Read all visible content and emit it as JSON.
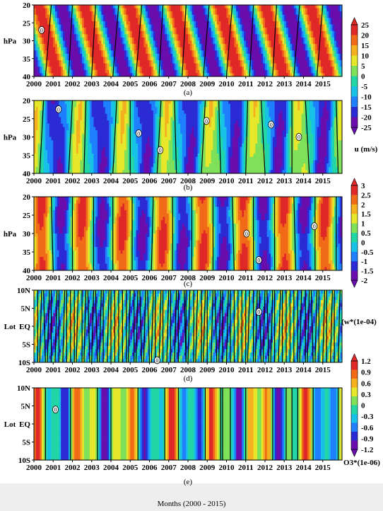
{
  "figure": {
    "xlabel": "Months (2000 - 2015)"
  },
  "chart_data": [
    {
      "type": "heatmap",
      "caption": "(a)",
      "ylabel": "hPa",
      "x_ticks": [
        "2000",
        "2001",
        "2002",
        "2003",
        "2004",
        "2005",
        "2006",
        "2007",
        "2008",
        "2009",
        "2010",
        "2011",
        "2012",
        "2013",
        "2014",
        "2015"
      ],
      "y_ticks": [
        "20",
        "25",
        "30",
        "35",
        "40"
      ],
      "contour_labels": [
        "0"
      ],
      "colorbar": {
        "label": "u (m/s)",
        "ticks": [
          "25",
          "20",
          "15",
          "10",
          "5",
          "0",
          "-5",
          "-10",
          "-15",
          "-20",
          "-25"
        ],
        "range": [
          -25,
          25
        ]
      },
      "pattern": "qbo",
      "colors": [
        "#6a0dad",
        "#2b2bd6",
        "#1e7fff",
        "#18c2e6",
        "#22d6a6",
        "#7fe05a",
        "#e6e62a",
        "#f5b020",
        "#f06a18",
        "#e02828"
      ]
    },
    {
      "type": "heatmap",
      "caption": "(b)",
      "ylabel": "hPa",
      "x_ticks": [
        "2000",
        "2001",
        "2002",
        "2003",
        "2004",
        "2005",
        "2006",
        "2007",
        "2008",
        "2009",
        "2010",
        "2011",
        "2012",
        "2013",
        "2014",
        "2015"
      ],
      "y_ticks": [
        "20",
        "25",
        "30",
        "35",
        "40"
      ],
      "contour_labels": [
        "0",
        "0",
        "0",
        "0",
        "0",
        "0"
      ],
      "pattern": "weak"
    },
    {
      "type": "heatmap",
      "caption": "(c)",
      "ylabel": "hPa",
      "x_ticks": [
        "2000",
        "2001",
        "2002",
        "2003",
        "2004",
        "2005",
        "2006",
        "2007",
        "2008",
        "2009",
        "2010",
        "2011",
        "2012",
        "2013",
        "2014",
        "2015"
      ],
      "y_ticks": [
        "20",
        "25",
        "30",
        "35",
        "40"
      ],
      "contour_labels": [
        "0",
        "0",
        "0"
      ],
      "colorbar": {
        "label": "(w*(1e-04)",
        "ticks": [
          "3",
          "2.5",
          "2",
          "1.5",
          "1",
          "0.5",
          "0",
          "-0.5",
          "-1",
          "-1.5",
          "-2"
        ],
        "range": [
          -2,
          3
        ]
      },
      "pattern": "vertical"
    },
    {
      "type": "heatmap",
      "caption": "(d)",
      "ylabel": "Lot",
      "x_ticks": [
        "2000",
        "2001",
        "2002",
        "2003",
        "2004",
        "2005",
        "2006",
        "2007",
        "2008",
        "2009",
        "2010",
        "2011",
        "2012",
        "2013",
        "2014",
        "2015"
      ],
      "y_ticks": [
        "10N",
        "5N",
        "EQ",
        "5S",
        "10S"
      ],
      "contour_labels": [
        "0",
        "0"
      ],
      "pattern": "noisy"
    },
    {
      "type": "heatmap",
      "caption": "(e)",
      "ylabel": "Lot",
      "x_ticks": [
        "2000",
        "2001",
        "2002",
        "2003",
        "2004",
        "2005",
        "2006",
        "2007",
        "2008",
        "2009",
        "2010",
        "2011",
        "2012",
        "2013",
        "2014",
        "2015"
      ],
      "y_ticks": [
        "10N",
        "5N",
        "EQ",
        "5S",
        "10S"
      ],
      "contour_labels": [
        "0"
      ],
      "colorbar": {
        "label": "O3*(1e-06)",
        "ticks": [
          "1.2",
          "0.9",
          "0.6",
          "0.3",
          "0",
          "-0.3",
          "-0.6",
          "-0.9",
          "-1.2"
        ],
        "range": [
          -1.2,
          1.2
        ]
      },
      "pattern": "ozone"
    }
  ]
}
